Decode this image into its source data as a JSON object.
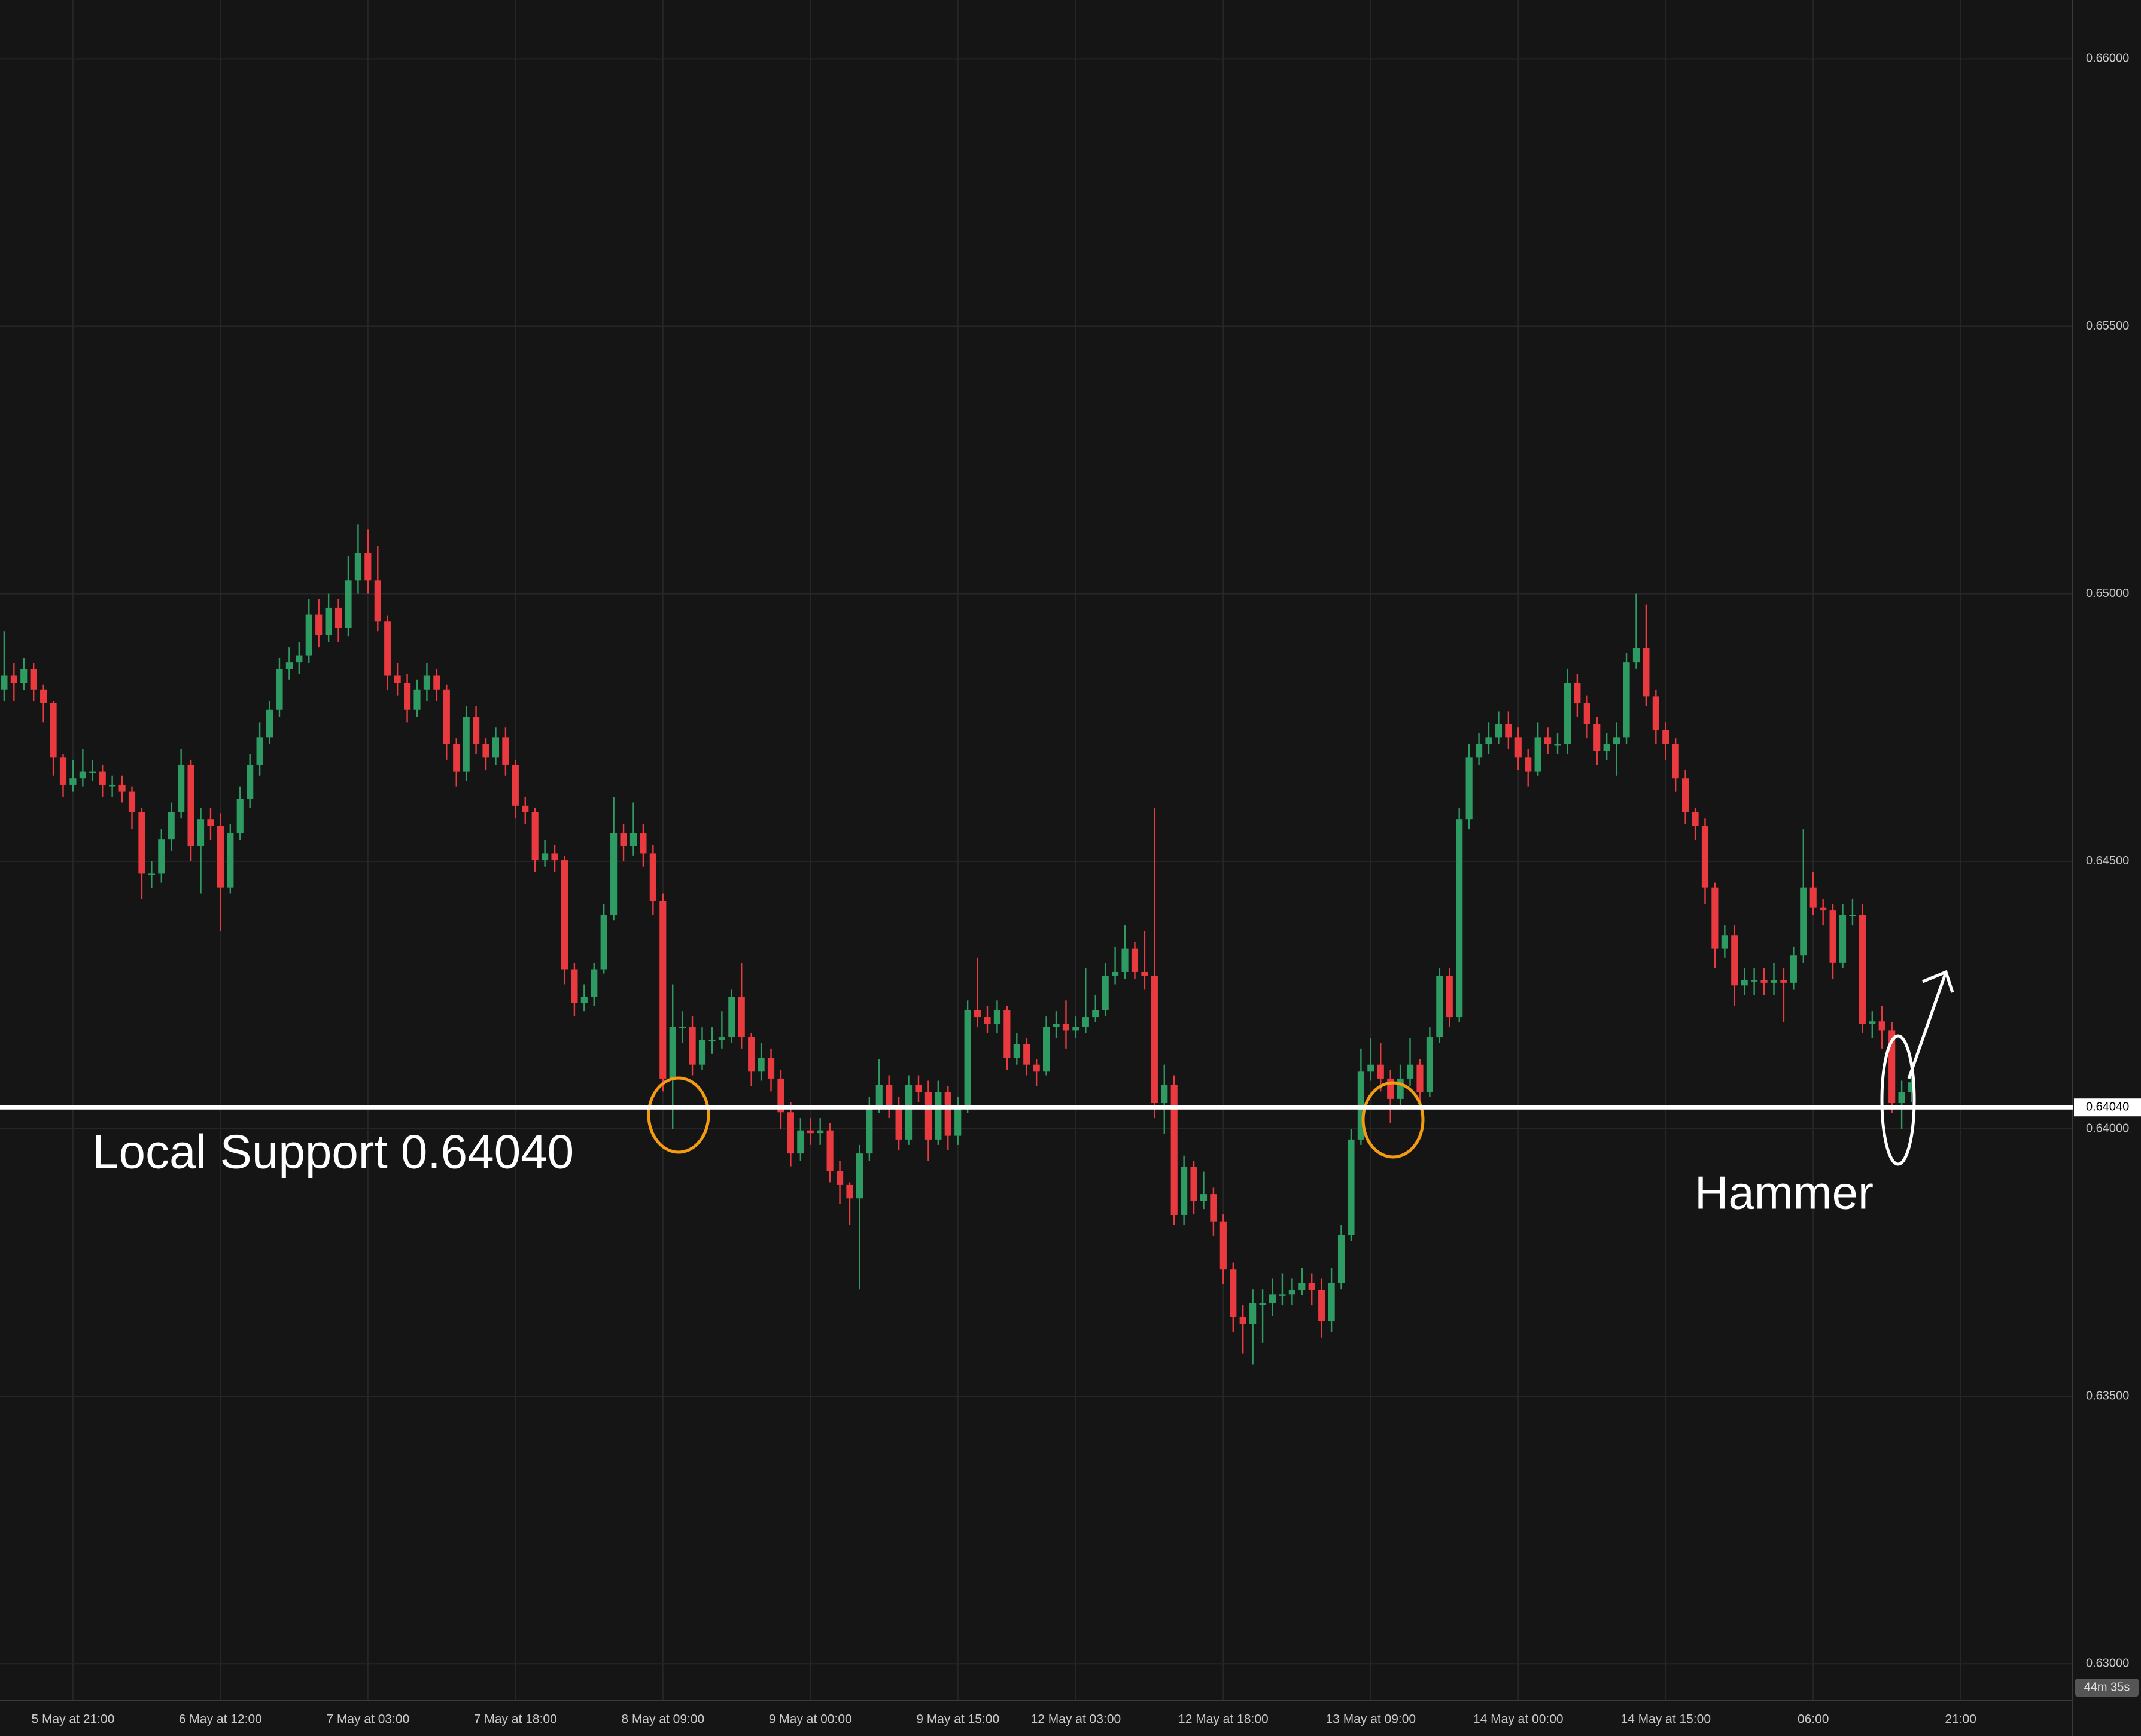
{
  "chart_data": {
    "type": "candlestick",
    "x": [
      0,
      1,
      2,
      3,
      4,
      5,
      6,
      7,
      8,
      9,
      10,
      11,
      12,
      13,
      14,
      15,
      16,
      17,
      18,
      19,
      20,
      21,
      22,
      23,
      24,
      25,
      26,
      27,
      28,
      29,
      30,
      31,
      32,
      33,
      34,
      35,
      36,
      37,
      38,
      39,
      40,
      41,
      42,
      43,
      44,
      45,
      46,
      47,
      48,
      49,
      50,
      51,
      52,
      53,
      54,
      55,
      56,
      57,
      58,
      59,
      60,
      61,
      62,
      63,
      64,
      65,
      66,
      67,
      68,
      69,
      70,
      71,
      72,
      73,
      74,
      75,
      76,
      77,
      78,
      79,
      80,
      81,
      82,
      83,
      84,
      85,
      86,
      87,
      88,
      89,
      90,
      91,
      92,
      93,
      94,
      95,
      96,
      97,
      98,
      99,
      100,
      101,
      102,
      103,
      104,
      105,
      106,
      107,
      108,
      109,
      110,
      111,
      112,
      113,
      114,
      115,
      116,
      117,
      118,
      119,
      120,
      121,
      122,
      123,
      124,
      125,
      126,
      127,
      128,
      129,
      130,
      131,
      132,
      133,
      134,
      135,
      136,
      137,
      138,
      139,
      140,
      141,
      142,
      143,
      144,
      145,
      146,
      147,
      148,
      149,
      150,
      151,
      152,
      153,
      154,
      155,
      156,
      157,
      158,
      159,
      160,
      161,
      162,
      163,
      164,
      165,
      166,
      167,
      168,
      169,
      170,
      171,
      172,
      173,
      174,
      175,
      176,
      177,
      178,
      179,
      180,
      181,
      182,
      183,
      184,
      185,
      186,
      187,
      188,
      189,
      190,
      191,
      192,
      193,
      194
    ],
    "open": [
      0.64821,
      0.64847,
      0.64834,
      0.64859,
      0.64821,
      0.64796,
      0.64694,
      0.64643,
      0.64655,
      0.64668,
      0.64668,
      0.64643,
      0.64643,
      0.6463,
      0.64592,
      0.64477,
      0.64477,
      0.64541,
      0.64592,
      0.64681,
      0.64528,
      0.64579,
      0.64566,
      0.64451,
      0.64553,
      0.64617,
      0.64681,
      0.64732,
      0.64783,
      0.64859,
      0.64872,
      0.64885,
      0.64961,
      0.64923,
      0.64974,
      0.64936,
      0.65025,
      0.65076,
      0.65025,
      0.64949,
      0.64847,
      0.64834,
      0.64783,
      0.64821,
      0.64847,
      0.64821,
      0.64719,
      0.64668,
      0.6477,
      0.64719,
      0.64694,
      0.64732,
      0.64681,
      0.64604,
      0.64592,
      0.64502,
      0.64515,
      0.64502,
      0.64298,
      0.64235,
      0.64247,
      0.64298,
      0.644,
      0.64553,
      0.64528,
      0.64553,
      0.64515,
      0.64426,
      0.64094,
      0.64191,
      0.64191,
      0.6412,
      0.64166,
      0.64166,
      0.64171,
      0.64247,
      0.64171,
      0.64107,
      0.64133,
      0.64094,
      0.64031,
      0.63954,
      0.63997,
      0.63992,
      0.63997,
      0.63921,
      0.63895,
      0.6387,
      0.63954,
      0.64043,
      0.64082,
      0.64043,
      0.6398,
      0.64082,
      0.64069,
      0.6398,
      0.64069,
      0.63987,
      0.64043,
      0.64222,
      0.64209,
      0.64196,
      0.64222,
      0.64133,
      0.64158,
      0.6412,
      0.64107,
      0.64191,
      0.64196,
      0.64184,
      0.64191,
      0.64209,
      0.64222,
      0.64286,
      0.64293,
      0.64337,
      0.64293,
      0.64286,
      0.64048,
      0.64082,
      0.63839,
      0.63929,
      0.63865,
      0.63878,
      0.63827,
      0.63737,
      0.63648,
      0.63635,
      0.63674,
      0.63674,
      0.63691,
      0.63691,
      0.63699,
      0.63712,
      0.63699,
      0.6364,
      0.63712,
      0.63801,
      0.6398,
      0.64107,
      0.6412,
      0.64094,
      0.64056,
      0.64094,
      0.6412,
      0.64069,
      0.64171,
      0.64286,
      0.64209,
      0.64579,
      0.64694,
      0.64719,
      0.64732,
      0.64757,
      0.64732,
      0.64694,
      0.64668,
      0.64732,
      0.64719,
      0.64719,
      0.64834,
      0.64796,
      0.64757,
      0.64706,
      0.64719,
      0.64732,
      0.64872,
      0.64898,
      0.64808,
      0.64745,
      0.64719,
      0.64655,
      0.64592,
      0.64566,
      0.64451,
      0.64337,
      0.64362,
      0.64268,
      0.64278,
      0.64278,
      0.64273,
      0.64278,
      0.64273,
      0.64324,
      0.64451,
      0.64413,
      0.64408,
      0.64311,
      0.644,
      0.644,
      0.64196,
      0.64201,
      0.64184,
      0.64048,
      0.64069
    ],
    "high": [
      0.6493,
      0.6487,
      0.6488,
      0.6487,
      0.6483,
      0.648,
      0.647,
      0.6469,
      0.6471,
      0.6469,
      0.6468,
      0.6466,
      0.6466,
      0.6464,
      0.646,
      0.645,
      0.6456,
      0.6461,
      0.6471,
      0.6469,
      0.646,
      0.646,
      0.6459,
      0.6457,
      0.6464,
      0.647,
      0.6476,
      0.648,
      0.6488,
      0.649,
      0.6491,
      0.6499,
      0.6499,
      0.65,
      0.6499,
      0.6507,
      0.6513,
      0.6512,
      0.6509,
      0.6496,
      0.6487,
      0.6485,
      0.6484,
      0.6487,
      0.6486,
      0.6483,
      0.6473,
      0.6479,
      0.6479,
      0.6473,
      0.6475,
      0.6475,
      0.6469,
      0.6462,
      0.646,
      0.6454,
      0.6453,
      0.6451,
      0.6431,
      0.6427,
      0.6431,
      0.6442,
      0.6462,
      0.6457,
      0.6461,
      0.6457,
      0.6453,
      0.6444,
      0.6427,
      0.6422,
      0.6421,
      0.6419,
      0.6419,
      0.6422,
      0.6426,
      0.6431,
      0.6418,
      0.6416,
      0.6415,
      0.6411,
      0.6405,
      0.6402,
      0.6402,
      0.6402,
      0.6401,
      0.6394,
      0.639,
      0.6397,
      0.6406,
      0.6413,
      0.641,
      0.6406,
      0.641,
      0.641,
      0.6409,
      0.6409,
      0.6408,
      0.6406,
      0.6424,
      0.6432,
      0.6423,
      0.6424,
      0.6423,
      0.6418,
      0.6417,
      0.6413,
      0.6421,
      0.6422,
      0.6424,
      0.6421,
      0.643,
      0.6425,
      0.6431,
      0.6434,
      0.6438,
      0.6435,
      0.6437,
      0.646,
      0.6412,
      0.641,
      0.6395,
      0.6394,
      0.6392,
      0.6389,
      0.6384,
      0.6375,
      0.6367,
      0.637,
      0.637,
      0.6372,
      0.6373,
      0.6372,
      0.6374,
      0.6373,
      0.6372,
      0.6374,
      0.6382,
      0.64,
      0.6415,
      0.6417,
      0.6416,
      0.6411,
      0.6412,
      0.6417,
      0.6413,
      0.6419,
      0.643,
      0.643,
      0.646,
      0.6472,
      0.6474,
      0.6476,
      0.6478,
      0.6478,
      0.6475,
      0.6471,
      0.6476,
      0.6475,
      0.6474,
      0.6486,
      0.6485,
      0.6481,
      0.6477,
      0.6474,
      0.6476,
      0.6489,
      0.65,
      0.6498,
      0.6482,
      0.6476,
      0.6473,
      0.6467,
      0.646,
      0.6458,
      0.6446,
      0.6438,
      0.6438,
      0.643,
      0.643,
      0.643,
      0.6431,
      0.643,
      0.6434,
      0.6456,
      0.6448,
      0.6443,
      0.6442,
      0.6442,
      0.6443,
      0.6442,
      0.6422,
      0.6423,
      0.642,
      0.6409,
      0.641
    ],
    "low": [
      0.648,
      0.648,
      0.6482,
      0.648,
      0.6476,
      0.6466,
      0.6462,
      0.6463,
      0.6464,
      0.6465,
      0.6462,
      0.6462,
      0.6461,
      0.6456,
      0.6443,
      0.6445,
      0.6446,
      0.6452,
      0.6458,
      0.645,
      0.6444,
      0.6454,
      0.6437,
      0.6444,
      0.6454,
      0.646,
      0.6466,
      0.6472,
      0.6477,
      0.6484,
      0.6485,
      0.6487,
      0.649,
      0.6491,
      0.6491,
      0.6492,
      0.65,
      0.65,
      0.6493,
      0.6482,
      0.6481,
      0.6476,
      0.6477,
      0.648,
      0.648,
      0.6469,
      0.6464,
      0.6465,
      0.647,
      0.6467,
      0.6468,
      0.6466,
      0.6458,
      0.6457,
      0.6448,
      0.6449,
      0.6448,
      0.6427,
      0.6421,
      0.6422,
      0.6423,
      0.6429,
      0.6439,
      0.645,
      0.6451,
      0.6449,
      0.644,
      0.6407,
      0.64,
      0.6416,
      0.641,
      0.6411,
      0.6414,
      0.6415,
      0.6416,
      0.6415,
      0.6408,
      0.6409,
      0.6407,
      0.64,
      0.6393,
      0.6394,
      0.6397,
      0.6397,
      0.639,
      0.6386,
      0.6382,
      0.637,
      0.6394,
      0.6403,
      0.6402,
      0.6396,
      0.6397,
      0.6405,
      0.6394,
      0.6397,
      0.6396,
      0.6397,
      0.6403,
      0.6419,
      0.6418,
      0.6418,
      0.6411,
      0.6412,
      0.641,
      0.6408,
      0.641,
      0.6417,
      0.6415,
      0.6417,
      0.6418,
      0.642,
      0.6421,
      0.6427,
      0.6428,
      0.6428,
      0.6426,
      0.6402,
      0.6399,
      0.6382,
      0.6382,
      0.6384,
      0.6385,
      0.638,
      0.6371,
      0.6362,
      0.6358,
      0.6356,
      0.636,
      0.6365,
      0.6367,
      0.6367,
      0.6369,
      0.6367,
      0.6361,
      0.6362,
      0.637,
      0.6379,
      0.6397,
      0.6409,
      0.6407,
      0.6401,
      0.6404,
      0.6408,
      0.6405,
      0.6406,
      0.6416,
      0.6419,
      0.642,
      0.6456,
      0.6468,
      0.647,
      0.6472,
      0.6471,
      0.6467,
      0.6464,
      0.6466,
      0.647,
      0.647,
      0.647,
      0.6477,
      0.6473,
      0.6468,
      0.6469,
      0.6466,
      0.6472,
      0.6486,
      0.6479,
      0.6472,
      0.6469,
      0.6463,
      0.6457,
      0.6454,
      0.6442,
      0.643,
      0.6432,
      0.6423,
      0.6425,
      0.6425,
      0.6425,
      0.6425,
      0.642,
      0.6426,
      0.6431,
      0.644,
      0.6438,
      0.6428,
      0.643,
      0.6438,
      0.6418,
      0.6417,
      0.6415,
      0.6403,
      0.64,
      0.6405
    ],
    "close": [
      0.64847,
      0.64834,
      0.64859,
      0.64821,
      0.64796,
      0.64694,
      0.64643,
      0.64655,
      0.64668,
      0.64668,
      0.64643,
      0.64643,
      0.6463,
      0.64592,
      0.64477,
      0.64477,
      0.64541,
      0.64592,
      0.64681,
      0.64528,
      0.64579,
      0.64566,
      0.64451,
      0.64553,
      0.64617,
      0.64681,
      0.64732,
      0.64783,
      0.64859,
      0.64872,
      0.64885,
      0.64961,
      0.64923,
      0.64974,
      0.64936,
      0.65025,
      0.65076,
      0.65025,
      0.64949,
      0.64847,
      0.64834,
      0.64783,
      0.64821,
      0.64847,
      0.64821,
      0.64719,
      0.64668,
      0.6477,
      0.64719,
      0.64694,
      0.64732,
      0.64681,
      0.64604,
      0.64592,
      0.64502,
      0.64515,
      0.64502,
      0.64298,
      0.64235,
      0.64247,
      0.64298,
      0.644,
      0.64553,
      0.64528,
      0.64553,
      0.64515,
      0.64426,
      0.64094,
      0.64191,
      0.64191,
      0.6412,
      0.64166,
      0.64166,
      0.64171,
      0.64247,
      0.64171,
      0.64107,
      0.64133,
      0.64094,
      0.64031,
      0.63954,
      0.63997,
      0.63992,
      0.63997,
      0.63921,
      0.63895,
      0.6387,
      0.63954,
      0.64043,
      0.64082,
      0.64043,
      0.6398,
      0.64082,
      0.64069,
      0.6398,
      0.64069,
      0.63987,
      0.64043,
      0.64222,
      0.64209,
      0.64196,
      0.64222,
      0.64133,
      0.64158,
      0.6412,
      0.64107,
      0.64191,
      0.64196,
      0.64184,
      0.64191,
      0.64209,
      0.64222,
      0.64286,
      0.64293,
      0.64337,
      0.64293,
      0.64286,
      0.64048,
      0.64082,
      0.63839,
      0.63929,
      0.63865,
      0.63878,
      0.63827,
      0.63737,
      0.63648,
      0.63635,
      0.63674,
      0.63674,
      0.63691,
      0.63691,
      0.63699,
      0.63712,
      0.63699,
      0.6364,
      0.63712,
      0.63801,
      0.6398,
      0.64107,
      0.6412,
      0.64094,
      0.64056,
      0.64094,
      0.6412,
      0.64069,
      0.64171,
      0.64286,
      0.64209,
      0.64579,
      0.64694,
      0.64719,
      0.64732,
      0.64757,
      0.64732,
      0.64694,
      0.64668,
      0.64732,
      0.64719,
      0.64719,
      0.64834,
      0.64796,
      0.64757,
      0.64706,
      0.64719,
      0.64732,
      0.64872,
      0.64898,
      0.64808,
      0.64745,
      0.64719,
      0.64655,
      0.64592,
      0.64566,
      0.64451,
      0.64337,
      0.64362,
      0.64268,
      0.64278,
      0.64278,
      0.64273,
      0.64278,
      0.64273,
      0.64324,
      0.64451,
      0.64413,
      0.64408,
      0.64311,
      0.644,
      0.644,
      0.64196,
      0.64201,
      0.64184,
      0.64048,
      0.64069,
      0.64087
    ],
    "colors": {
      "up": "#2e9b63",
      "down": "#e83a3f"
    },
    "xlim": [
      -0.42,
      210.4
    ],
    "xticks": [
      {
        "value": 7,
        "label": "5 May at 21:00"
      },
      {
        "value": 22,
        "label": "6 May at 12:00"
      },
      {
        "value": 37,
        "label": "7 May at 03:00"
      },
      {
        "value": 52,
        "label": "7 May at 18:00"
      },
      {
        "value": 67,
        "label": "8 May at 09:00"
      },
      {
        "value": 82,
        "label": "9 May at 00:00"
      },
      {
        "value": 97,
        "label": "9 May at 15:00"
      },
      {
        "value": 109,
        "label": "12 May at 03:00"
      },
      {
        "value": 124,
        "label": "12 May at 18:00"
      },
      {
        "value": 139,
        "label": "13 May at 09:00"
      },
      {
        "value": 154,
        "label": "14 May at 00:00"
      },
      {
        "value": 169,
        "label": "14 May at 15:00"
      },
      {
        "value": 184,
        "label": "06:00"
      },
      {
        "value": 199,
        "label": "21:00"
      }
    ],
    "ylim": [
      0.62931,
      0.6611
    ],
    "yticks": [
      {
        "value": 0.63,
        "label": "0.63000"
      },
      {
        "value": 0.635,
        "label": "0.63500"
      },
      {
        "value": 0.64,
        "label": "0.64000"
      },
      {
        "value": 0.645,
        "label": "0.64500"
      },
      {
        "value": 0.65,
        "label": "0.65000"
      },
      {
        "value": 0.655,
        "label": "0.65500"
      },
      {
        "value": 0.66,
        "label": "0.66000"
      }
    ],
    "grid": true,
    "support": {
      "value": 0.6404,
      "label": "0.64040",
      "text": "Local Support 0.64040"
    },
    "annotations": [
      "Hammer"
    ],
    "countdown": "44m 35s"
  }
}
